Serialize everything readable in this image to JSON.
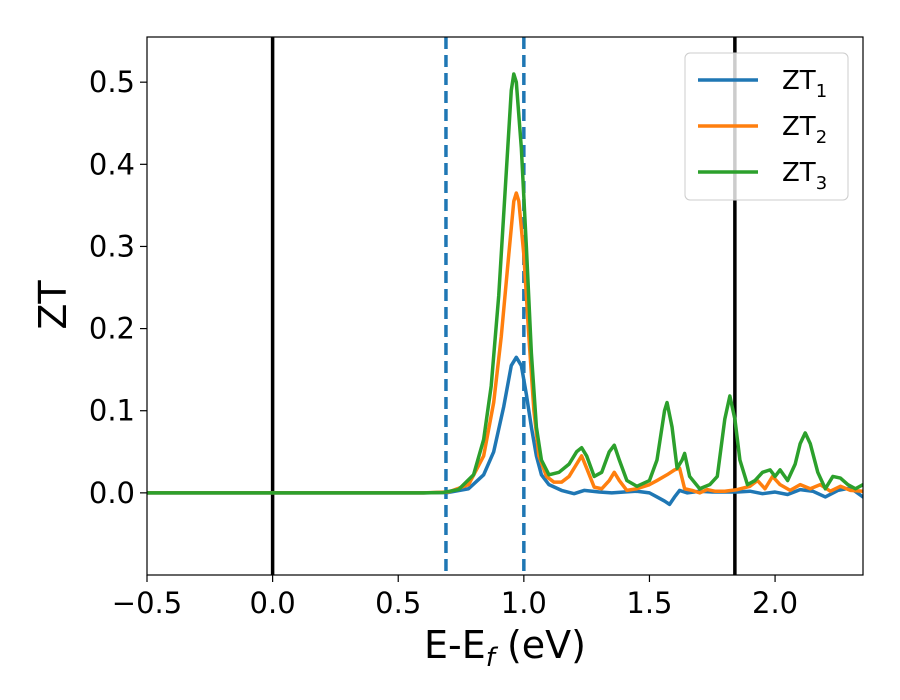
{
  "chart_data": {
    "type": "line",
    "xlabel_main": "E-E",
    "xlabel_sub": "f",
    "xlabel_unit": " (eV)",
    "ylabel": "ZT",
    "xlim": [
      -0.5,
      2.35
    ],
    "ylim": [
      -0.1,
      0.555
    ],
    "xticks": [
      -0.5,
      0.0,
      0.5,
      1.0,
      1.5,
      2.0
    ],
    "xtick_labels": [
      "−0.5",
      "0.0",
      "0.5",
      "1.0",
      "1.5",
      "2.0"
    ],
    "yticks": [
      0.0,
      0.1,
      0.2,
      0.3,
      0.4,
      0.5
    ],
    "ytick_labels": [
      "0.0",
      "0.1",
      "0.2",
      "0.3",
      "0.4",
      "0.5"
    ],
    "grid": false,
    "legend_position": "top-right",
    "vertical_lines": [
      {
        "x": 0.0,
        "color": "#000000",
        "style": "solid"
      },
      {
        "x": 0.69,
        "color": "#1f77b4",
        "style": "dashed"
      },
      {
        "x": 1.0,
        "color": "#1f77b4",
        "style": "dashed"
      },
      {
        "x": 1.84,
        "color": "#000000",
        "style": "solid"
      }
    ],
    "series": [
      {
        "name": "ZT",
        "name_sub": "1",
        "color": "#1f77b4",
        "points": [
          [
            -0.5,
            0
          ],
          [
            0.6,
            0
          ],
          [
            0.7,
            0.0005
          ],
          [
            0.78,
            0.005
          ],
          [
            0.84,
            0.022
          ],
          [
            0.88,
            0.05
          ],
          [
            0.92,
            0.105
          ],
          [
            0.95,
            0.155
          ],
          [
            0.97,
            0.165
          ],
          [
            0.99,
            0.155
          ],
          [
            1.01,
            0.12
          ],
          [
            1.03,
            0.08
          ],
          [
            1.05,
            0.045
          ],
          [
            1.07,
            0.022
          ],
          [
            1.1,
            0.01
          ],
          [
            1.15,
            0.003
          ],
          [
            1.2,
            -0.001
          ],
          [
            1.24,
            0.003
          ],
          [
            1.3,
            0.001
          ],
          [
            1.35,
            0.0
          ],
          [
            1.4,
            0.001
          ],
          [
            1.45,
            0.002
          ],
          [
            1.5,
            0.0
          ],
          [
            1.53,
            -0.005
          ],
          [
            1.56,
            -0.01
          ],
          [
            1.58,
            -0.014
          ],
          [
            1.6,
            -0.005
          ],
          [
            1.62,
            0.003
          ],
          [
            1.65,
            0.0
          ],
          [
            1.7,
            0.002
          ],
          [
            1.75,
            0.001
          ],
          [
            1.8,
            0.001
          ],
          [
            1.85,
            0.001
          ],
          [
            1.9,
            0.002
          ],
          [
            1.95,
            -0.001
          ],
          [
            2.0,
            0.001
          ],
          [
            2.05,
            -0.002
          ],
          [
            2.1,
            0.004
          ],
          [
            2.15,
            0.002
          ],
          [
            2.2,
            -0.005
          ],
          [
            2.25,
            0.003
          ],
          [
            2.3,
            0.006
          ],
          [
            2.35,
            -0.005
          ]
        ]
      },
      {
        "name": "ZT",
        "name_sub": "2",
        "color": "#ff7f0e",
        "points": [
          [
            -0.5,
            0
          ],
          [
            0.6,
            0
          ],
          [
            0.7,
            0.001
          ],
          [
            0.78,
            0.01
          ],
          [
            0.84,
            0.045
          ],
          [
            0.88,
            0.11
          ],
          [
            0.91,
            0.19
          ],
          [
            0.94,
            0.29
          ],
          [
            0.96,
            0.355
          ],
          [
            0.97,
            0.365
          ],
          [
            0.98,
            0.355
          ],
          [
            1.0,
            0.29
          ],
          [
            1.02,
            0.19
          ],
          [
            1.04,
            0.1
          ],
          [
            1.06,
            0.045
          ],
          [
            1.09,
            0.02
          ],
          [
            1.12,
            0.013
          ],
          [
            1.15,
            0.013
          ],
          [
            1.18,
            0.02
          ],
          [
            1.21,
            0.035
          ],
          [
            1.23,
            0.045
          ],
          [
            1.25,
            0.03
          ],
          [
            1.28,
            0.007
          ],
          [
            1.31,
            0.005
          ],
          [
            1.34,
            0.015
          ],
          [
            1.36,
            0.025
          ],
          [
            1.38,
            0.015
          ],
          [
            1.41,
            0.003
          ],
          [
            1.45,
            0.005
          ],
          [
            1.5,
            0.01
          ],
          [
            1.53,
            0.015
          ],
          [
            1.57,
            0.022
          ],
          [
            1.6,
            0.028
          ],
          [
            1.62,
            0.03
          ],
          [
            1.64,
            0.005
          ],
          [
            1.67,
            0.003
          ],
          [
            1.7,
            0.0
          ],
          [
            1.73,
            0.004
          ],
          [
            1.76,
            0.002
          ],
          [
            1.8,
            0.002
          ],
          [
            1.85,
            0.004
          ],
          [
            1.9,
            0.008
          ],
          [
            1.93,
            0.015
          ],
          [
            1.96,
            0.005
          ],
          [
            1.99,
            0.02
          ],
          [
            2.02,
            0.01
          ],
          [
            2.06,
            0.003
          ],
          [
            2.1,
            0.01
          ],
          [
            2.14,
            0.005
          ],
          [
            2.18,
            0.01
          ],
          [
            2.22,
            0.002
          ],
          [
            2.26,
            0.008
          ],
          [
            2.3,
            0.003
          ],
          [
            2.35,
            0.002
          ]
        ]
      },
      {
        "name": "ZT",
        "name_sub": "3",
        "color": "#2ca02c",
        "points": [
          [
            -0.5,
            0
          ],
          [
            0.6,
            0
          ],
          [
            0.68,
            0.0005
          ],
          [
            0.74,
            0.004
          ],
          [
            0.8,
            0.022
          ],
          [
            0.84,
            0.065
          ],
          [
            0.87,
            0.13
          ],
          [
            0.9,
            0.24
          ],
          [
            0.93,
            0.39
          ],
          [
            0.95,
            0.49
          ],
          [
            0.96,
            0.51
          ],
          [
            0.97,
            0.5
          ],
          [
            0.99,
            0.42
          ],
          [
            1.01,
            0.3
          ],
          [
            1.03,
            0.17
          ],
          [
            1.05,
            0.08
          ],
          [
            1.07,
            0.04
          ],
          [
            1.1,
            0.022
          ],
          [
            1.14,
            0.025
          ],
          [
            1.18,
            0.035
          ],
          [
            1.21,
            0.05
          ],
          [
            1.23,
            0.055
          ],
          [
            1.25,
            0.045
          ],
          [
            1.28,
            0.02
          ],
          [
            1.31,
            0.025
          ],
          [
            1.34,
            0.05
          ],
          [
            1.36,
            0.058
          ],
          [
            1.38,
            0.04
          ],
          [
            1.41,
            0.015
          ],
          [
            1.45,
            0.008
          ],
          [
            1.5,
            0.015
          ],
          [
            1.53,
            0.04
          ],
          [
            1.56,
            0.1
          ],
          [
            1.57,
            0.11
          ],
          [
            1.59,
            0.08
          ],
          [
            1.61,
            0.03
          ],
          [
            1.63,
            0.04
          ],
          [
            1.64,
            0.048
          ],
          [
            1.66,
            0.02
          ],
          [
            1.7,
            0.005
          ],
          [
            1.74,
            0.01
          ],
          [
            1.77,
            0.02
          ],
          [
            1.8,
            0.09
          ],
          [
            1.82,
            0.118
          ],
          [
            1.84,
            0.09
          ],
          [
            1.86,
            0.04
          ],
          [
            1.89,
            0.01
          ],
          [
            1.92,
            0.015
          ],
          [
            1.95,
            0.025
          ],
          [
            1.98,
            0.028
          ],
          [
            2.0,
            0.02
          ],
          [
            2.02,
            0.028
          ],
          [
            2.05,
            0.015
          ],
          [
            2.08,
            0.035
          ],
          [
            2.1,
            0.06
          ],
          [
            2.12,
            0.073
          ],
          [
            2.14,
            0.06
          ],
          [
            2.17,
            0.025
          ],
          [
            2.2,
            0.005
          ],
          [
            2.23,
            0.02
          ],
          [
            2.26,
            0.018
          ],
          [
            2.29,
            0.01
          ],
          [
            2.32,
            0.005
          ],
          [
            2.35,
            0.01
          ]
        ]
      }
    ]
  }
}
